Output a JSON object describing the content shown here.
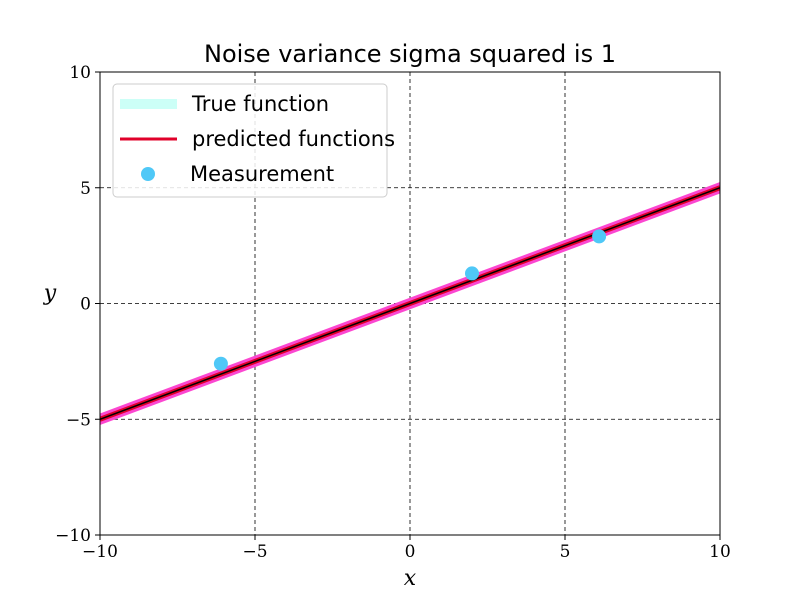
{
  "chart_data": {
    "type": "line",
    "title": "Noise variance sigma squared is 1",
    "xlabel": "x",
    "ylabel": "y",
    "xlim": [
      -10,
      10
    ],
    "ylim": [
      -10,
      10
    ],
    "xticks": [
      -10,
      -5,
      0,
      5,
      10
    ],
    "yticks": [
      -10,
      -5,
      0,
      5,
      10
    ],
    "xtick_labels": [
      "−10",
      "−5",
      "0",
      "5",
      "10"
    ],
    "ytick_labels": [
      "−10",
      "−5",
      "0",
      "5",
      "10"
    ],
    "grid": true,
    "legend_position": "top-left",
    "series": [
      {
        "name": "True function",
        "kind": "line",
        "color": "#ccfff7",
        "x": [
          -10,
          10
        ],
        "y": [
          -5,
          5
        ]
      },
      {
        "name": "predicted functions",
        "kind": "line",
        "color": "#e0002a",
        "x": [
          -10,
          10
        ],
        "y": [
          -5,
          5
        ]
      },
      {
        "name": "Measurement",
        "kind": "scatter",
        "color": "#4fc8f7",
        "x": [
          -6.1,
          2.0,
          6.1
        ],
        "y": [
          -2.6,
          1.3,
          2.9
        ]
      }
    ],
    "predicted_band": {
      "color": "#ff33cc",
      "x": [
        -10,
        10
      ],
      "upper": [
        -4.75,
        5.25
      ],
      "lower": [
        -5.25,
        4.75
      ]
    },
    "mean_line_color": "#000000"
  }
}
